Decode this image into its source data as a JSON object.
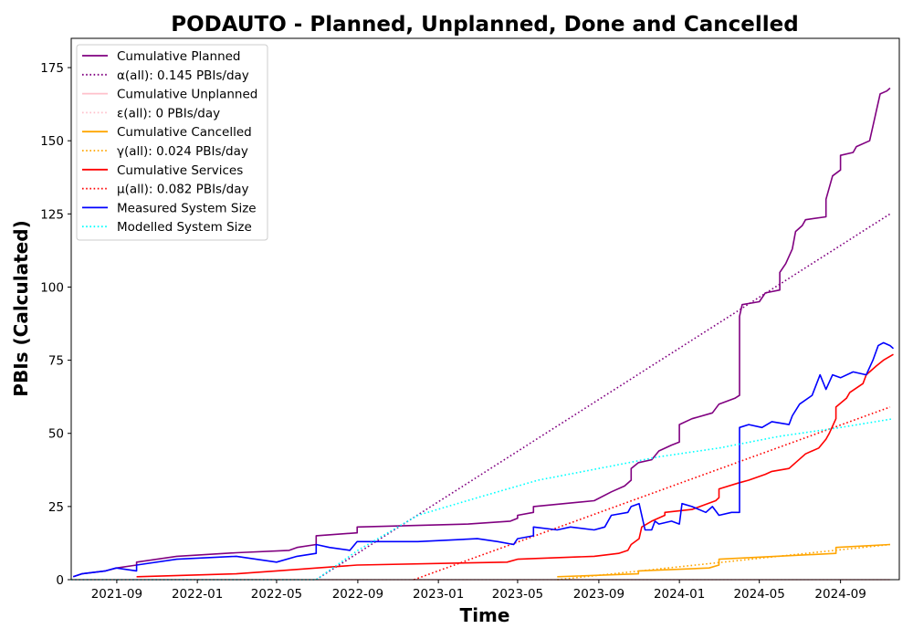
{
  "chart_data": {
    "type": "line",
    "title": "PODAUTO - Planned, Unplanned, Done  and Cancelled",
    "xlabel": "Time",
    "ylabel": "PBIs (Calculated)",
    "xlim": [
      "2021-06-24",
      "2024-11-29"
    ],
    "ylim": [
      0,
      185
    ],
    "x_ticks": [
      "2021-09",
      "2022-01",
      "2022-05",
      "2022-09",
      "2023-01",
      "2023-05",
      "2023-09",
      "2024-01",
      "2024-05",
      "2024-09"
    ],
    "x_tick_dates": [
      "2021-09-01",
      "2022-01-01",
      "2022-05-01",
      "2022-09-01",
      "2023-01-01",
      "2023-05-01",
      "2023-09-01",
      "2024-01-01",
      "2024-05-01",
      "2024-09-01"
    ],
    "y_ticks": [
      0,
      25,
      50,
      75,
      100,
      125,
      150,
      175
    ],
    "grid": false,
    "legend_position": "top-left",
    "series": [
      {
        "name": "Cumulative Planned",
        "color": "#800080",
        "style": "solid",
        "points": [
          [
            "2021-06-27",
            1
          ],
          [
            "2021-07-10",
            2
          ],
          [
            "2021-08-15",
            3
          ],
          [
            "2021-09-01",
            4
          ],
          [
            "2021-10-01",
            5
          ],
          [
            "2021-10-01",
            6
          ],
          [
            "2021-12-01",
            8
          ],
          [
            "2022-03-01",
            9.2
          ],
          [
            "2022-05-20",
            10
          ],
          [
            "2022-06-01",
            11
          ],
          [
            "2022-06-30",
            12
          ],
          [
            "2022-06-30",
            15
          ],
          [
            "2022-08-31",
            16
          ],
          [
            "2022-08-31",
            18
          ],
          [
            "2023-02-15",
            19
          ],
          [
            "2023-04-20",
            20
          ],
          [
            "2023-05-01",
            21
          ],
          [
            "2023-05-01",
            22
          ],
          [
            "2023-05-25",
            23
          ],
          [
            "2023-05-25",
            25
          ],
          [
            "2023-08-25",
            27
          ],
          [
            "2023-09-20",
            30
          ],
          [
            "2023-10-10",
            32
          ],
          [
            "2023-10-20",
            34
          ],
          [
            "2023-10-20",
            38
          ],
          [
            "2023-10-31",
            40
          ],
          [
            "2023-11-20",
            41
          ],
          [
            "2023-12-01",
            44
          ],
          [
            "2023-12-20",
            46
          ],
          [
            "2024-01-01",
            47
          ],
          [
            "2024-01-01",
            53
          ],
          [
            "2024-01-20",
            55
          ],
          [
            "2024-02-20",
            57
          ],
          [
            "2024-03-01",
            60
          ],
          [
            "2024-03-25",
            62
          ],
          [
            "2024-04-01",
            63
          ],
          [
            "2024-04-01",
            90
          ],
          [
            "2024-04-05",
            94
          ],
          [
            "2024-05-01",
            95
          ],
          [
            "2024-05-10",
            98
          ],
          [
            "2024-06-01",
            99
          ],
          [
            "2024-06-01",
            105
          ],
          [
            "2024-06-10",
            108
          ],
          [
            "2024-06-20",
            113
          ],
          [
            "2024-06-25",
            119
          ],
          [
            "2024-07-05",
            121
          ],
          [
            "2024-07-10",
            123
          ],
          [
            "2024-08-10",
            124
          ],
          [
            "2024-08-10",
            130
          ],
          [
            "2024-08-20",
            138
          ],
          [
            "2024-09-01",
            140
          ],
          [
            "2024-09-01",
            145
          ],
          [
            "2024-09-20",
            146
          ],
          [
            "2024-09-25",
            148
          ],
          [
            "2024-10-15",
            150
          ],
          [
            "2024-10-20",
            155
          ],
          [
            "2024-10-25",
            160
          ],
          [
            "2024-10-31",
            166
          ],
          [
            "2024-11-10",
            167
          ],
          [
            "2024-11-15",
            168
          ]
        ]
      },
      {
        "name": "α(all): 0.145 PBIs/day",
        "color": "#800080",
        "style": "dotted",
        "points": [
          [
            "2022-06-30",
            0
          ],
          [
            "2024-11-15",
            125
          ]
        ]
      },
      {
        "name": "Cumulative Unplanned",
        "color": "#ffc0cb",
        "style": "solid",
        "points": [
          [
            "2021-06-24",
            0
          ],
          [
            "2024-11-15",
            0
          ]
        ]
      },
      {
        "name": "ε(all): 0 PBIs/day",
        "color": "#ffc0cb",
        "style": "dotted",
        "points": [
          [
            "2021-06-24",
            0
          ],
          [
            "2024-11-15",
            0
          ]
        ]
      },
      {
        "name": "Cumulative Cancelled",
        "color": "#ffa500",
        "style": "solid",
        "points": [
          [
            "2023-06-30",
            1
          ],
          [
            "2023-10-31",
            2
          ],
          [
            "2023-10-31",
            3
          ],
          [
            "2024-02-15",
            4
          ],
          [
            "2024-03-01",
            5
          ],
          [
            "2024-03-01",
            7
          ],
          [
            "2024-08-25",
            9
          ],
          [
            "2024-08-25",
            11
          ],
          [
            "2024-11-15",
            12
          ]
        ]
      },
      {
        "name": "γ(all): 0.024 PBIs/day",
        "color": "#ffa500",
        "style": "dotted",
        "points": [
          [
            "2023-06-30",
            0
          ],
          [
            "2024-11-15",
            12
          ]
        ]
      },
      {
        "name": "Cumulative Services",
        "color": "#ff0000",
        "style": "solid",
        "points": [
          [
            "2021-10-01",
            1
          ],
          [
            "2022-03-01",
            2
          ],
          [
            "2022-05-01",
            3
          ],
          [
            "2022-07-01",
            4
          ],
          [
            "2022-08-31",
            5
          ],
          [
            "2023-04-15",
            6
          ],
          [
            "2023-05-01",
            7
          ],
          [
            "2023-08-25",
            8
          ],
          [
            "2023-10-01",
            9
          ],
          [
            "2023-10-15",
            10
          ],
          [
            "2023-10-20",
            12
          ],
          [
            "2023-11-01",
            14
          ],
          [
            "2023-11-05",
            18
          ],
          [
            "2023-11-20",
            20
          ],
          [
            "2023-12-10",
            22
          ],
          [
            "2023-12-10",
            23
          ],
          [
            "2024-01-20",
            24
          ],
          [
            "2024-02-01",
            25
          ],
          [
            "2024-02-25",
            27
          ],
          [
            "2024-03-01",
            28
          ],
          [
            "2024-03-01",
            31
          ],
          [
            "2024-03-30",
            33
          ],
          [
            "2024-04-15",
            34
          ],
          [
            "2024-05-10",
            36
          ],
          [
            "2024-05-20",
            37
          ],
          [
            "2024-06-15",
            38
          ],
          [
            "2024-06-25",
            40
          ],
          [
            "2024-07-10",
            43
          ],
          [
            "2024-07-30",
            45
          ],
          [
            "2024-08-10",
            48
          ],
          [
            "2024-08-15",
            50
          ],
          [
            "2024-08-25",
            55
          ],
          [
            "2024-08-25",
            59
          ],
          [
            "2024-09-10",
            62
          ],
          [
            "2024-09-15",
            64
          ],
          [
            "2024-10-05",
            67
          ],
          [
            "2024-10-10",
            70
          ],
          [
            "2024-10-25",
            73
          ],
          [
            "2024-11-05",
            75
          ],
          [
            "2024-11-20",
            77
          ]
        ]
      },
      {
        "name": "μ(all): 0.082 PBIs/day",
        "color": "#ff0000",
        "style": "dotted",
        "points": [
          [
            "2022-11-25",
            0
          ],
          [
            "2024-11-15",
            59
          ]
        ]
      },
      {
        "name": "Measured System Size",
        "color": "#0000ff",
        "style": "solid",
        "points": [
          [
            "2021-06-27",
            1
          ],
          [
            "2021-07-10",
            2
          ],
          [
            "2021-08-15",
            3
          ],
          [
            "2021-08-31",
            4
          ],
          [
            "2021-10-01",
            3
          ],
          [
            "2021-10-01",
            5
          ],
          [
            "2021-12-01",
            7
          ],
          [
            "2022-03-01",
            8
          ],
          [
            "2022-05-01",
            6
          ],
          [
            "2022-06-01",
            8
          ],
          [
            "2022-06-30",
            9
          ],
          [
            "2022-06-30",
            12
          ],
          [
            "2022-07-20",
            11
          ],
          [
            "2022-08-20",
            10
          ],
          [
            "2022-08-31",
            13
          ],
          [
            "2022-12-01",
            13
          ],
          [
            "2023-03-01",
            14
          ],
          [
            "2023-04-01",
            13
          ],
          [
            "2023-04-25",
            12
          ],
          [
            "2023-05-01",
            14
          ],
          [
            "2023-05-25",
            15
          ],
          [
            "2023-05-25",
            18
          ],
          [
            "2023-06-30",
            17
          ],
          [
            "2023-07-20",
            18
          ],
          [
            "2023-08-25",
            17
          ],
          [
            "2023-09-10",
            18
          ],
          [
            "2023-09-20",
            22
          ],
          [
            "2023-10-15",
            23
          ],
          [
            "2023-10-20",
            25
          ],
          [
            "2023-11-01",
            26
          ],
          [
            "2023-11-10",
            17
          ],
          [
            "2023-11-20",
            17
          ],
          [
            "2023-11-25",
            20
          ],
          [
            "2023-12-01",
            19
          ],
          [
            "2023-12-20",
            20
          ],
          [
            "2024-01-01",
            19
          ],
          [
            "2024-01-05",
            26
          ],
          [
            "2024-01-20",
            25
          ],
          [
            "2024-02-10",
            23
          ],
          [
            "2024-02-20",
            25
          ],
          [
            "2024-03-01",
            22
          ],
          [
            "2024-03-20",
            23
          ],
          [
            "2024-04-01",
            23
          ],
          [
            "2024-04-01",
            52
          ],
          [
            "2024-04-15",
            53
          ],
          [
            "2024-05-05",
            52
          ],
          [
            "2024-05-20",
            54
          ],
          [
            "2024-06-15",
            53
          ],
          [
            "2024-06-20",
            56
          ],
          [
            "2024-07-01",
            60
          ],
          [
            "2024-07-20",
            63
          ],
          [
            "2024-08-01",
            70
          ],
          [
            "2024-08-10",
            65
          ],
          [
            "2024-08-20",
            70
          ],
          [
            "2024-09-01",
            69
          ],
          [
            "2024-09-20",
            71
          ],
          [
            "2024-10-10",
            70
          ],
          [
            "2024-10-20",
            75
          ],
          [
            "2024-10-28",
            80
          ],
          [
            "2024-11-05",
            81
          ],
          [
            "2024-11-15",
            80
          ],
          [
            "2024-11-20",
            79
          ]
        ]
      },
      {
        "name": "Modelled System Size",
        "color": "#00ffff",
        "style": "dotted",
        "points": [
          [
            "2021-06-24",
            0
          ],
          [
            "2022-06-30",
            0
          ],
          [
            "2022-09-01",
            10
          ],
          [
            "2022-12-01",
            22
          ],
          [
            "2023-03-01",
            28
          ],
          [
            "2023-06-01",
            34
          ],
          [
            "2023-09-01",
            38
          ],
          [
            "2023-12-01",
            42
          ],
          [
            "2024-03-01",
            45
          ],
          [
            "2024-06-01",
            49
          ],
          [
            "2024-09-01",
            52
          ],
          [
            "2024-11-20",
            55
          ]
        ]
      }
    ]
  }
}
